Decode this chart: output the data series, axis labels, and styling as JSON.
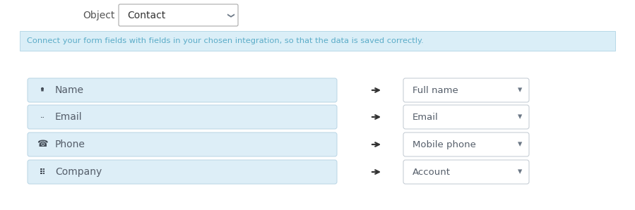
{
  "bg_color": "#ffffff",
  "object_label": "Object",
  "object_value": "Contact",
  "info_text": "Connect your form fields with fields in your chosen integration, so that the data is saved correctly.",
  "info_bg": "#daeef7",
  "info_text_color": "#5bacc8",
  "info_border": "#b8d9e8",
  "rows": [
    {
      "left_label": "Name",
      "right_label": "Full name"
    },
    {
      "left_label": "Email",
      "right_label": "Email"
    },
    {
      "left_label": "Phone",
      "right_label": "Mobile phone"
    },
    {
      "left_label": "Company",
      "right_label": "Account"
    }
  ],
  "left_box_color": "#ddeef7",
  "left_box_border": "#b8d4e4",
  "right_box_color": "#ffffff",
  "right_box_border": "#c0c8d0",
  "label_color": "#555e6a",
  "icon_color": "#444d58",
  "dropdown_arrow_color": "#6b7785",
  "object_box_border": "#aaaaaa",
  "object_box_bg": "#ffffff",
  "object_text_color": "#333333",
  "object_label_color": "#555555",
  "figw": 8.99,
  "figh": 2.98,
  "dpi": 100
}
